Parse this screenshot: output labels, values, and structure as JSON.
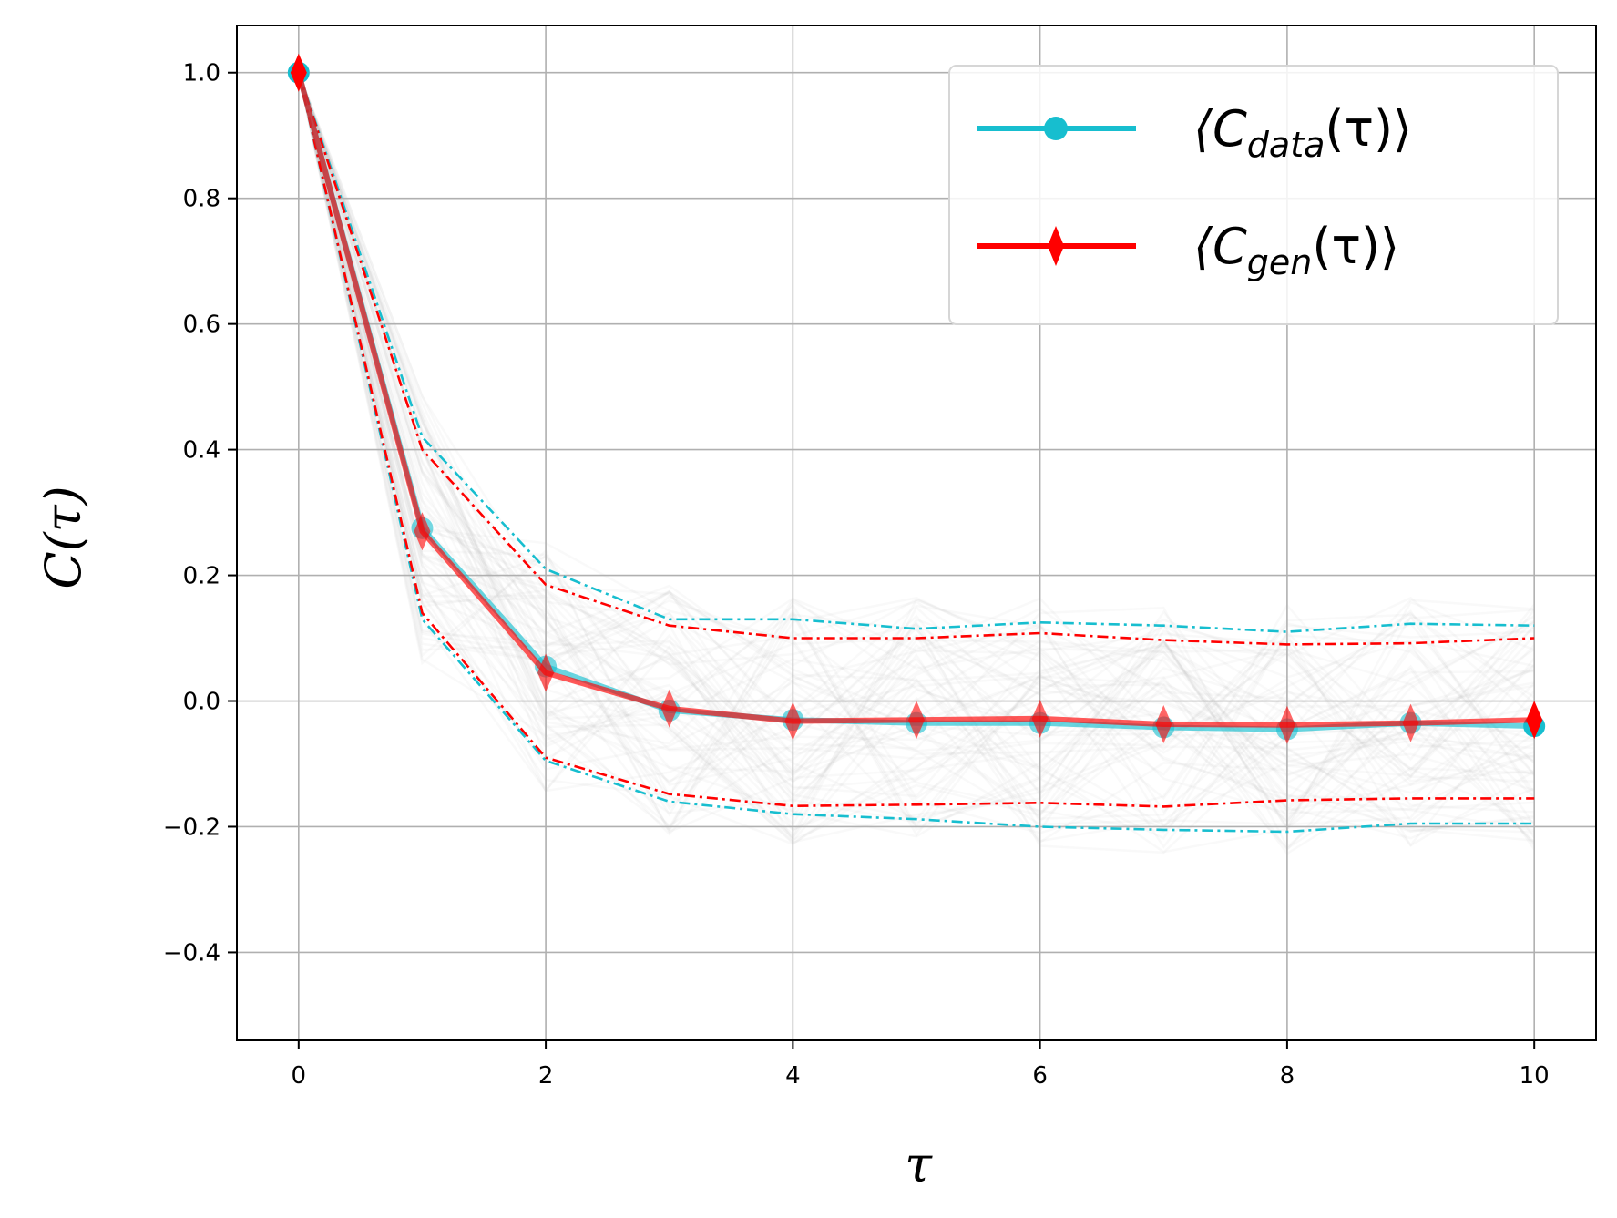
{
  "chart_data": {
    "type": "line",
    "title": "",
    "xlabel": "τ",
    "ylabel": "C(τ)",
    "xlim": [
      -0.5,
      10.5
    ],
    "ylim": [
      -0.54,
      1.075
    ],
    "grid": true,
    "x_ticks": [
      0,
      2,
      4,
      6,
      8,
      10
    ],
    "x_tick_labels": [
      "0",
      "2",
      "4",
      "6",
      "8",
      "10"
    ],
    "y_ticks": [
      -0.4,
      -0.2,
      0.0,
      0.2,
      0.4,
      0.6,
      0.8,
      1.0
    ],
    "y_tick_labels": [
      "−0.4",
      "−0.2",
      "0.0",
      "0.2",
      "0.4",
      "0.6",
      "0.8",
      "1.0"
    ],
    "x": [
      0,
      1,
      2,
      3,
      4,
      5,
      6,
      7,
      8,
      9,
      10
    ],
    "legend_position": "top-right",
    "legend": [
      {
        "main": "⟨C",
        "sub": "data",
        "tail": "(τ)⟩",
        "series": "data_mean"
      },
      {
        "main": "⟨C",
        "sub": "gen",
        "tail": "(τ)⟩",
        "series": "gen_mean"
      }
    ],
    "colors": {
      "data": "#17becf",
      "gen": "#ff0000",
      "background_traces": "#bfbfbf",
      "grid": "#b0b0b0"
    },
    "series": [
      {
        "name": "⟨C_data(τ)⟩",
        "id": "data_mean",
        "style": "solid",
        "marker": "circle",
        "color": "#17becf",
        "values": [
          1.0,
          0.275,
          0.055,
          -0.015,
          -0.03,
          -0.035,
          -0.035,
          -0.042,
          -0.045,
          -0.035,
          -0.04
        ]
      },
      {
        "name": "⟨C_gen(τ)⟩",
        "id": "gen_mean",
        "style": "solid",
        "marker": "thin_diamond",
        "color": "#ff0000",
        "values": [
          1.0,
          0.27,
          0.045,
          -0.012,
          -0.032,
          -0.03,
          -0.028,
          -0.037,
          -0.038,
          -0.035,
          -0.03
        ]
      },
      {
        "name": "data upper band",
        "id": "data_upper",
        "style": "dashdot",
        "color": "#17becf",
        "values": [
          1.0,
          0.42,
          0.21,
          0.13,
          0.13,
          0.115,
          0.125,
          0.12,
          0.11,
          0.123,
          0.12
        ]
      },
      {
        "name": "data lower band",
        "id": "data_lower",
        "style": "dashdot",
        "color": "#17becf",
        "values": [
          1.0,
          0.13,
          -0.095,
          -0.16,
          -0.18,
          -0.188,
          -0.2,
          -0.205,
          -0.208,
          -0.195,
          -0.195
        ]
      },
      {
        "name": "gen upper band",
        "id": "gen_upper",
        "style": "dashdot",
        "color": "#ff0000",
        "values": [
          1.0,
          0.4,
          0.185,
          0.12,
          0.1,
          0.1,
          0.108,
          0.097,
          0.09,
          0.092,
          0.1
        ]
      },
      {
        "name": "gen lower band",
        "id": "gen_lower",
        "style": "dashdot",
        "color": "#ff0000",
        "values": [
          1.0,
          0.14,
          -0.09,
          -0.148,
          -0.167,
          -0.165,
          -0.162,
          -0.168,
          -0.158,
          -0.155,
          -0.155
        ]
      }
    ]
  }
}
